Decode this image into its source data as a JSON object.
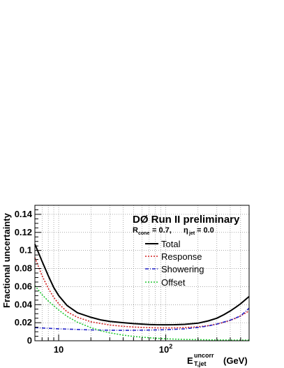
{
  "chart_data": {
    "type": "line",
    "title": "",
    "xlabel": {
      "base": "E",
      "sup": "uncorr",
      "sub": "T,jet",
      "unit": "(GeV)"
    },
    "ylabel": "Fractional uncertainty",
    "x_scale": "log",
    "xlim": [
      6,
      600
    ],
    "ylim": [
      0,
      0.15
    ],
    "grid": true,
    "x_ticks": [
      {
        "value": 10,
        "label": "10",
        "exp": ""
      },
      {
        "value": 100,
        "label": "10",
        "exp": "2"
      }
    ],
    "y_ticks": [
      {
        "value": 0,
        "label": "0"
      },
      {
        "value": 0.02,
        "label": "0.02"
      },
      {
        "value": 0.04,
        "label": "0.04"
      },
      {
        "value": 0.06,
        "label": "0.06"
      },
      {
        "value": 0.08,
        "label": "0.08"
      },
      {
        "value": 0.1,
        "label": "0.1"
      },
      {
        "value": 0.12,
        "label": "0.12"
      },
      {
        "value": 0.14,
        "label": "0.14"
      }
    ],
    "annotation": {
      "title": "DØ Run II preliminary",
      "line2": {
        "r": "R",
        "r_sub": "cone",
        "r_val": " = 0.7,",
        "eta": "η",
        "eta_sub": "jet",
        "eta_val": " = 0.0"
      }
    },
    "legend_position": "top-right",
    "series": [
      {
        "name": "Total",
        "color": "#000000",
        "dash": "solid",
        "x": [
          6,
          7,
          8,
          9,
          10,
          12,
          15,
          20,
          25,
          30,
          40,
          50,
          60,
          70,
          80,
          100,
          120,
          150,
          200,
          250,
          300,
          350,
          400,
          450,
          500,
          600
        ],
        "y": [
          0.107,
          0.088,
          0.072,
          0.059,
          0.05,
          0.039,
          0.031,
          0.026,
          0.023,
          0.0215,
          0.02,
          0.019,
          0.0185,
          0.018,
          0.0178,
          0.0177,
          0.0178,
          0.0182,
          0.0195,
          0.022,
          0.025,
          0.029,
          0.033,
          0.037,
          0.041,
          0.049
        ]
      },
      {
        "name": "Response",
        "color": "#d32020",
        "dash": "dotted",
        "x": [
          6,
          7,
          8,
          9,
          10,
          12,
          15,
          20,
          25,
          30,
          40,
          50,
          60,
          70,
          80,
          100,
          120,
          150,
          200,
          250,
          300,
          350,
          400,
          450,
          500,
          600
        ],
        "y": [
          0.092,
          0.072,
          0.058,
          0.048,
          0.041,
          0.032,
          0.026,
          0.021,
          0.019,
          0.0175,
          0.016,
          0.0152,
          0.0148,
          0.0145,
          0.0143,
          0.0142,
          0.0143,
          0.0146,
          0.0155,
          0.0168,
          0.0185,
          0.0205,
          0.0225,
          0.025,
          0.0275,
          0.033
        ]
      },
      {
        "name": "Showering",
        "color": "#2424c8",
        "dash": "dashdot",
        "x": [
          6,
          8,
          10,
          15,
          20,
          30,
          40,
          50,
          70,
          100,
          150,
          200,
          250,
          300,
          400,
          500,
          600
        ],
        "y": [
          0.0145,
          0.0138,
          0.0132,
          0.0125,
          0.012,
          0.0117,
          0.0115,
          0.0116,
          0.0118,
          0.0122,
          0.0132,
          0.0148,
          0.0165,
          0.0185,
          0.0228,
          0.0275,
          0.036
        ]
      },
      {
        "name": "Offset",
        "color": "#22c832",
        "dash": "dotted",
        "x": [
          6,
          7,
          8,
          10,
          12,
          15,
          20,
          25,
          30,
          40,
          50,
          70,
          100,
          150,
          200,
          300,
          400,
          600
        ],
        "y": [
          0.061,
          0.051,
          0.044,
          0.034,
          0.027,
          0.0205,
          0.0145,
          0.011,
          0.0088,
          0.0063,
          0.0048,
          0.0033,
          0.0022,
          0.0015,
          0.0012,
          0.0009,
          0.0008,
          0.0007
        ]
      }
    ]
  }
}
